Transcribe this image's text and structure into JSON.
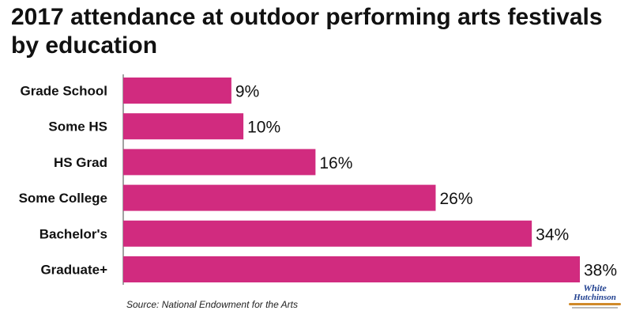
{
  "title": "2017 attendance at outdoor performing arts festivals by education",
  "source": "Source: National Endowment for the Arts",
  "logo": {
    "line1": "White",
    "line2": "Hutchinson"
  },
  "colors": {
    "bar": "#d12b7f",
    "text": "#111111"
  },
  "chart_data": {
    "type": "bar",
    "orientation": "horizontal",
    "title": "2017 attendance at outdoor performing arts festivals by education",
    "categories": [
      "Grade School",
      "Some HS",
      "HS Grad",
      "Some College",
      "Bachelor's",
      "Graduate+"
    ],
    "values": [
      9,
      10,
      16,
      26,
      34,
      38
    ],
    "value_labels": [
      "9%",
      "10%",
      "16%",
      "26%",
      "34%",
      "38%"
    ],
    "xlim": [
      0,
      38
    ],
    "grid": false,
    "legend": "none"
  }
}
